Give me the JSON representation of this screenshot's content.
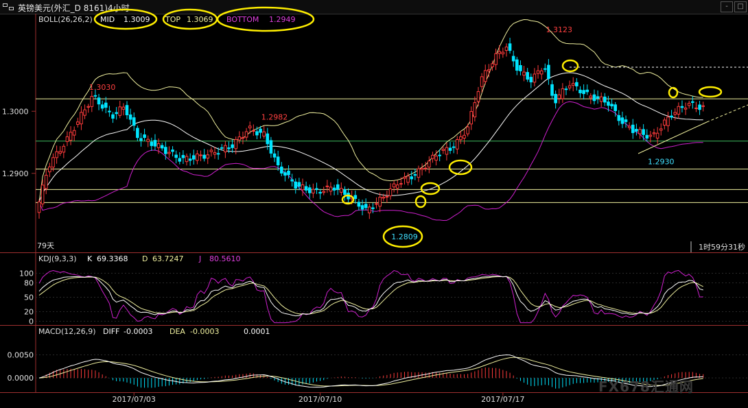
{
  "window": {
    "title": "英镑美元(外汇_D 8161)4小时",
    "controls": [
      "-",
      "□"
    ]
  },
  "colors": {
    "up": "#ff3b3b",
    "down": "#00e5ff",
    "mid": "#ffffff",
    "top": "#f2f2a0",
    "bottom": "#d020d0",
    "annot": "#ffee00",
    "label_red": "#ff4040",
    "label_cyan": "#40e0ff"
  },
  "boll_legend": {
    "name": "BOLL(26,26,2)",
    "mid_label": "MID",
    "mid_value": "1.3009",
    "top_label": "TOP",
    "top_value": "1.3069",
    "bottom_label": "BOTTOM",
    "bottom_value": "1.2949"
  },
  "kdj_legend": {
    "name": "KDJ(9,3,3)",
    "k_label": "K",
    "k_value": "69.3368",
    "d_label": "D",
    "d_value": "63.7247",
    "j_label": "J",
    "j_value": "80.5610"
  },
  "macd_legend": {
    "name": "MACD(12,26,9)",
    "diff_label": "DIFF",
    "diff_value": "-0.0003",
    "dea_label": "DEA",
    "dea_value": "-0.0003",
    "macd_value": "0.0001"
  },
  "status": {
    "days": "79天",
    "countdown": "1时59分31秒"
  },
  "watermark": "FX678汇通网",
  "chart_data": [
    {
      "type": "candlestick",
      "title": "",
      "y_ticks": [
        "1.3000",
        "1.2900"
      ],
      "y_tick_values": [
        1.3,
        1.29
      ],
      "ylim": [
        1.2775,
        1.3135
      ],
      "x_ticks": [
        "2017/07/03",
        "2017/07/10",
        "2017/07/17"
      ],
      "x_tick_index": [
        27,
        80,
        132
      ],
      "annotations": [
        {
          "text": "1.3030",
          "index": 18,
          "price": 1.303,
          "color": "label_red"
        },
        {
          "text": "1.2982",
          "index": 67,
          "price": 1.2982,
          "color": "label_red"
        },
        {
          "text": "1.2809",
          "index": 104,
          "price": 1.2809,
          "color": "label_cyan"
        },
        {
          "text": "1.3123",
          "index": 148,
          "price": 1.3123,
          "color": "label_red"
        },
        {
          "text": "1.2930",
          "index": 177,
          "price": 1.293,
          "color": "label_cyan"
        }
      ],
      "horizontal_lines": [
        {
          "price": 1.302,
          "color": "#f2f2a0"
        },
        {
          "price": 1.2952,
          "color": "#40c060"
        },
        {
          "price": 1.2907,
          "color": "#f2f2a0"
        },
        {
          "price": 1.2874,
          "color": "#f2f2a0"
        },
        {
          "price": 1.2853,
          "color": "#f2f2a0"
        }
      ]
    },
    {
      "type": "line",
      "title": "KDJ(9,3,3)",
      "y_ticks": [
        "100",
        "80",
        "50",
        "20",
        "0"
      ],
      "y_tick_values": [
        100,
        80,
        50,
        20,
        0
      ],
      "ylim": [
        -5,
        115
      ],
      "series": [
        {
          "name": "K"
        },
        {
          "name": "D"
        },
        {
          "name": "J"
        }
      ]
    },
    {
      "type": "bar",
      "title": "MACD(12,26,9)",
      "y_ticks": [
        "0.0050",
        "0.0000"
      ],
      "y_tick_values": [
        0.005,
        0.0
      ],
      "ylim": [
        -0.0028,
        0.0088
      ],
      "series": [
        {
          "name": "DIFF"
        },
        {
          "name": "DEA"
        },
        {
          "name": "MACD"
        }
      ]
    }
  ]
}
